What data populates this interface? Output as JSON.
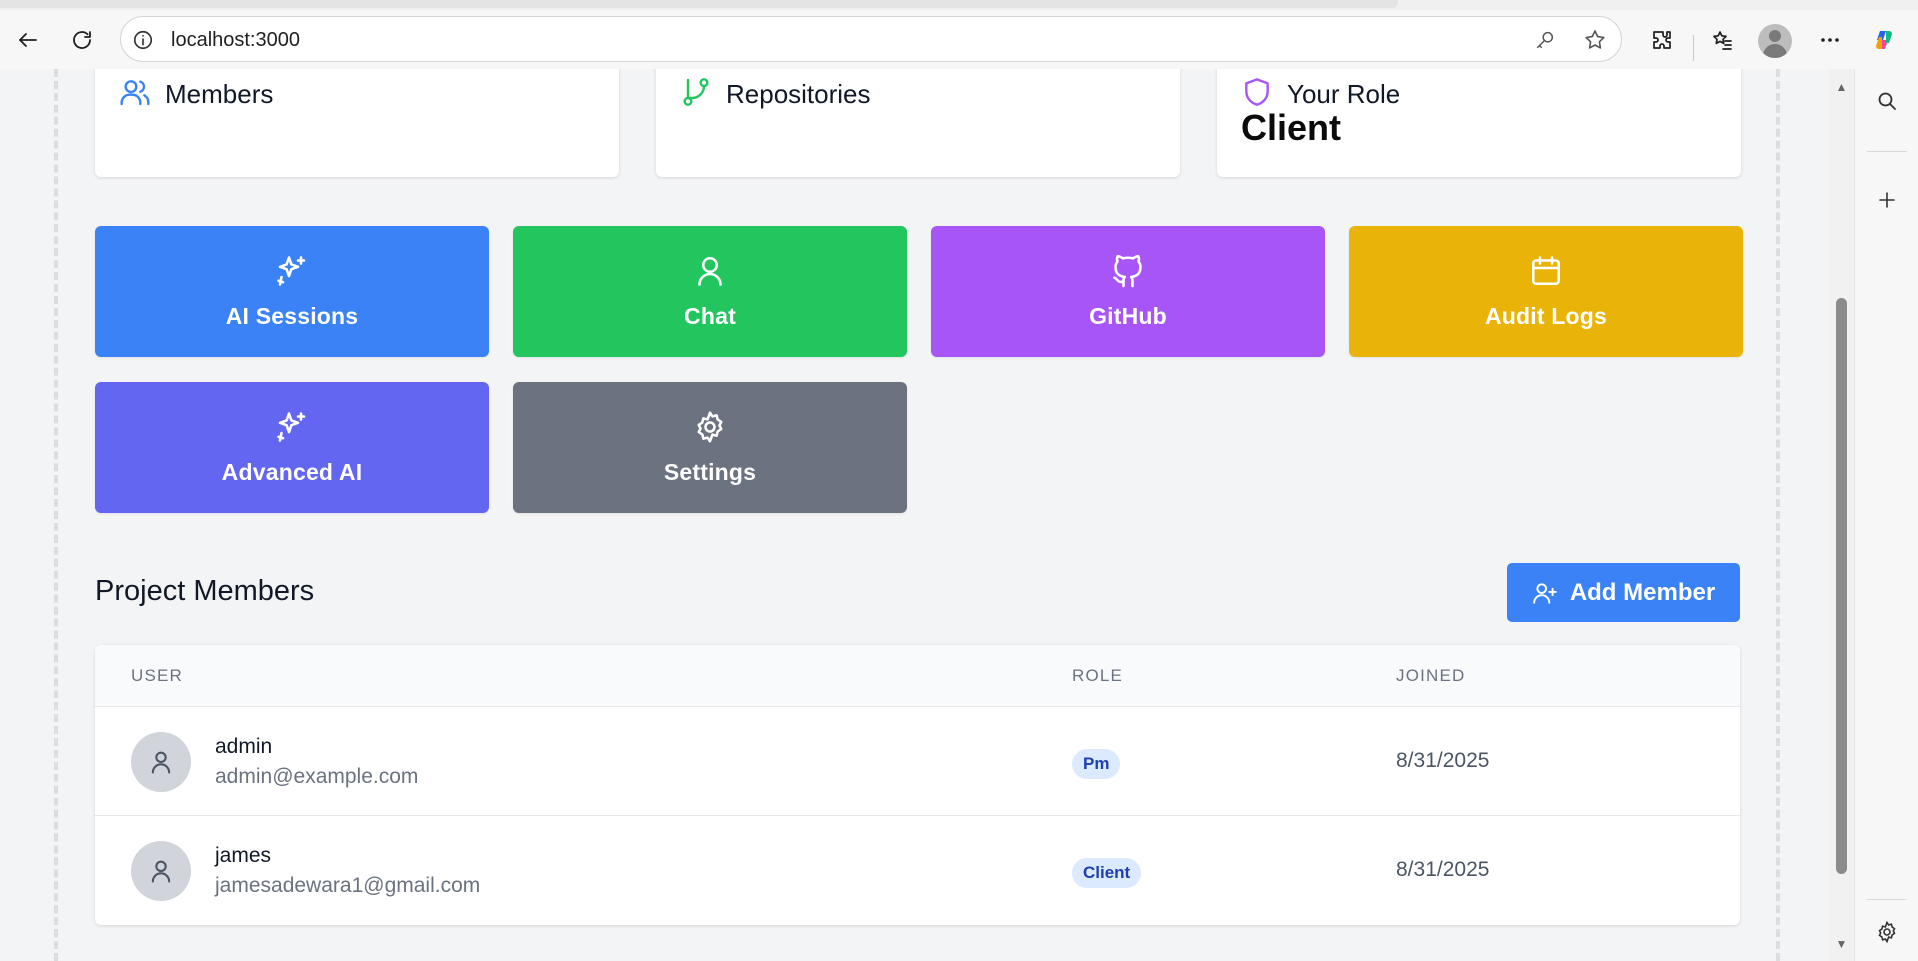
{
  "browser": {
    "url": "localhost:3000",
    "icons": [
      "back-arrow-icon",
      "refresh-icon",
      "info-icon",
      "key-icon",
      "star-icon",
      "extensions-icon",
      "favorites-icon",
      "profile-avatar",
      "more-icon",
      "copilot-icon"
    ]
  },
  "side_rail": {
    "icons": [
      "search-icon",
      "plus-icon",
      "gear-icon"
    ]
  },
  "stats": {
    "members": {
      "label": "Members",
      "icon": "users-icon",
      "color": "#3b82f6"
    },
    "repositories": {
      "label": "Repositories",
      "icon": "git-branch-icon",
      "color": "#22c55e"
    },
    "role": {
      "label": "Your Role",
      "value": "Client",
      "icon": "shield-icon",
      "color": "#a855f7"
    }
  },
  "actions": [
    {
      "label": "AI Sessions",
      "icon": "sparkles-icon",
      "color": "#3b82f6"
    },
    {
      "label": "Chat",
      "icon": "user-icon",
      "color": "#22c55e"
    },
    {
      "label": "GitHub",
      "icon": "github-icon",
      "color": "#a855f7"
    },
    {
      "label": "Audit Logs",
      "icon": "calendar-icon",
      "color": "#eab308"
    },
    {
      "label": "Advanced AI",
      "icon": "sparkles-icon",
      "color": "#6366f1"
    },
    {
      "label": "Settings",
      "icon": "gear-icon",
      "color": "#6b7280"
    }
  ],
  "members_section": {
    "title": "Project Members",
    "add_button": "Add Member",
    "columns": [
      "USER",
      "ROLE",
      "JOINED"
    ],
    "rows": [
      {
        "name": "admin",
        "email": "admin@example.com",
        "role": "Pm",
        "joined": "8/31/2025"
      },
      {
        "name": "james",
        "email": "jamesadewara1@gmail.com",
        "role": "Client",
        "joined": "8/31/2025"
      }
    ]
  }
}
